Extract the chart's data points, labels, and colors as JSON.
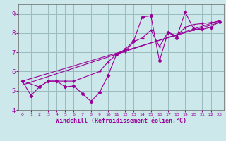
{
  "xlabel": "Windchill (Refroidissement éolien,°C)",
  "bg_color": "#cce8ea",
  "grid_color": "#99bbbd",
  "line_color": "#990099",
  "xlim": [
    -0.5,
    23.5
  ],
  "ylim": [
    4,
    9.5
  ],
  "xticks": [
    0,
    1,
    2,
    3,
    4,
    5,
    6,
    7,
    8,
    9,
    10,
    11,
    12,
    13,
    14,
    15,
    16,
    17,
    18,
    19,
    20,
    21,
    22,
    23
  ],
  "yticks": [
    4,
    5,
    6,
    7,
    8,
    9
  ],
  "series_zigzag_x": [
    0,
    1,
    2,
    3,
    4,
    5,
    6,
    7,
    8,
    9,
    10,
    11,
    12,
    13,
    14,
    15,
    16,
    17,
    18,
    19,
    20,
    21,
    22,
    23
  ],
  "series_zigzag_y": [
    5.5,
    4.75,
    5.2,
    5.5,
    5.5,
    5.2,
    5.25,
    4.85,
    4.45,
    4.9,
    5.8,
    6.9,
    7.15,
    7.6,
    8.85,
    8.9,
    6.55,
    8.05,
    7.75,
    9.1,
    8.2,
    8.2,
    8.3,
    8.6
  ],
  "series_smooth_x": [
    0,
    2,
    3,
    4,
    5,
    6,
    9,
    10,
    11,
    12,
    13,
    14,
    15,
    16,
    17,
    18,
    19,
    20,
    21,
    22,
    23
  ],
  "series_smooth_y": [
    5.5,
    5.2,
    5.5,
    5.5,
    5.5,
    5.5,
    6.0,
    6.5,
    6.9,
    7.05,
    7.55,
    7.75,
    8.15,
    7.3,
    8.05,
    7.85,
    8.3,
    8.45,
    8.5,
    8.55,
    8.6
  ],
  "trend1_x": [
    0,
    23
  ],
  "trend1_y": [
    5.5,
    8.55
  ],
  "trend2_x": [
    0,
    23
  ],
  "trend2_y": [
    5.3,
    8.65
  ]
}
